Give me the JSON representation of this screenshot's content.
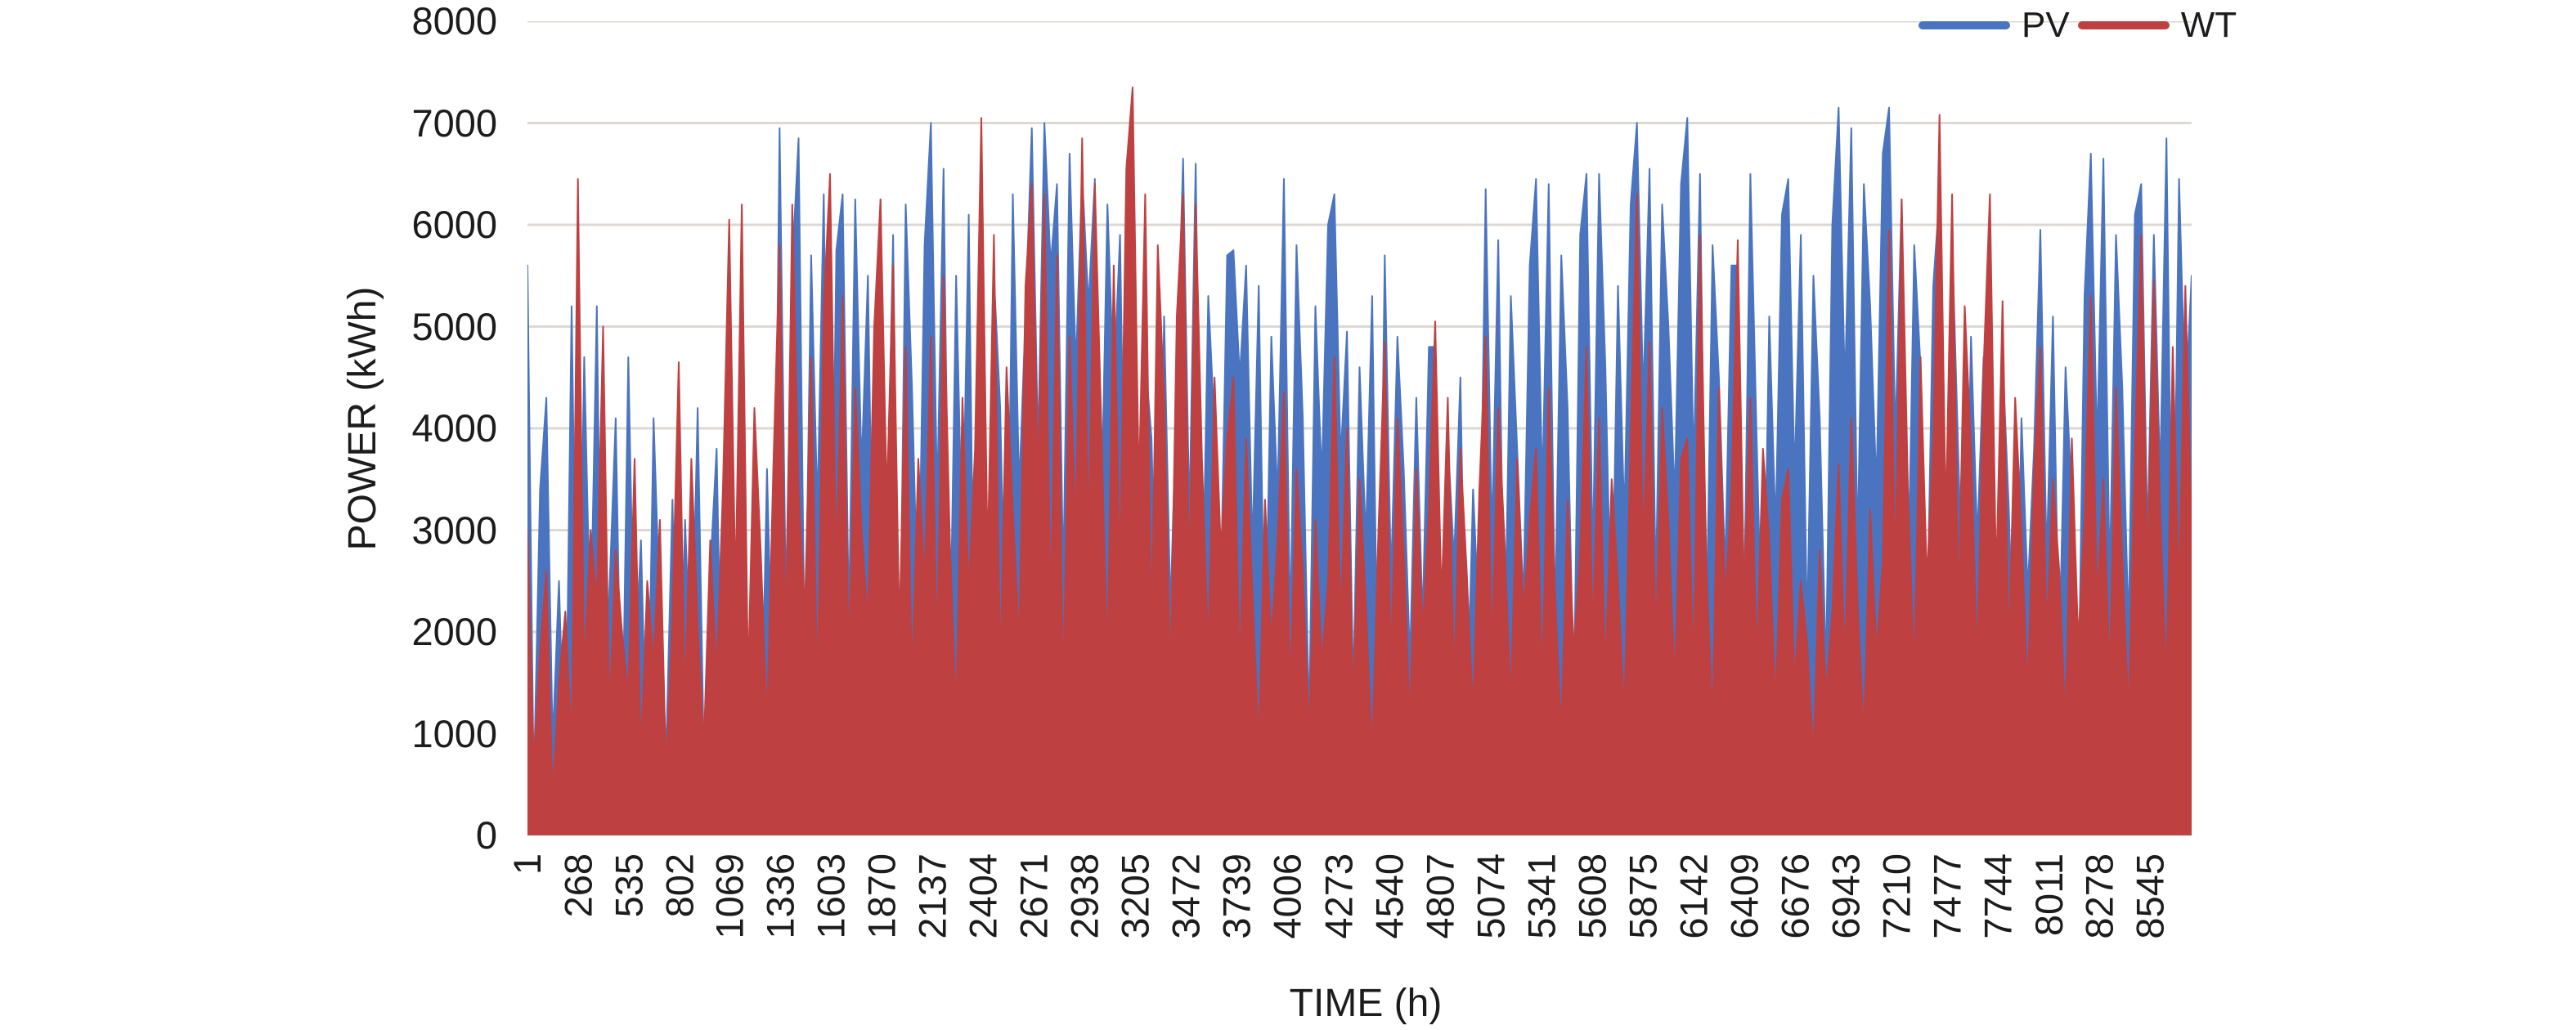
{
  "figure": {
    "background": "#ffffff",
    "text_color": "#1c1c1c"
  },
  "chart_data": {
    "type": "area",
    "title": "",
    "xlabel": "TIME (h)",
    "ylabel": "POWER (kWh)",
    "ylim": [
      0,
      8000
    ],
    "y_ticks": [
      0,
      1000,
      2000,
      3000,
      4000,
      5000,
      6000,
      7000,
      8000
    ],
    "x_start": 1,
    "x_end": 8760,
    "x_tick_step": 267,
    "x_tick_labels": [
      "1",
      "268",
      "535",
      "802",
      "1069",
      "1336",
      "1603",
      "1870",
      "2137",
      "2404",
      "2671",
      "2938",
      "3205",
      "3472",
      "3739",
      "4006",
      "4273",
      "4540",
      "4807",
      "5074",
      "5341",
      "5608",
      "5875",
      "6142",
      "6409",
      "6676",
      "6943",
      "7210",
      "7477",
      "7744",
      "8011",
      "8278",
      "8545"
    ],
    "grid": true,
    "gridline_color": "#dcd8d2",
    "legend_position": "top-right",
    "series": [
      {
        "name": "PV",
        "color": "#4a74bf",
        "values": [
          5600,
          450,
          3400,
          4300,
          900,
          2500,
          350,
          5200,
          700,
          4700,
          1900,
          5200,
          300,
          2400,
          4100,
          600,
          4700,
          1500,
          2900,
          400,
          4100,
          2200,
          800,
          3300,
          250,
          3100,
          1400,
          4200,
          700,
          2600,
          3800,
          500,
          3000,
          900,
          4200,
          1700,
          2500,
          450,
          3600,
          1100,
          6950,
          2300,
          5600,
          6850,
          1500,
          5700,
          3200,
          6300,
          900,
          5750,
          6300,
          2100,
          6250,
          3600,
          5500,
          1400,
          6250,
          2800,
          5900,
          1100,
          6200,
          4400,
          2000,
          5800,
          7000,
          3300,
          6550,
          1600,
          5500,
          2700,
          6100,
          900,
          6850,
          2200,
          5500,
          4200,
          1200,
          6300,
          3400,
          5100,
          6950,
          3800,
          7000,
          5600,
          6400,
          2500,
          6700,
          4600,
          6500,
          5200,
          6450,
          3000,
          6200,
          4400,
          5900,
          1800,
          5500,
          2600,
          4700,
          3900,
          1300,
          5100,
          2200,
          4400,
          6650,
          3100,
          6600,
          1900,
          5300,
          4000,
          2400,
          5700,
          5750,
          4500,
          5600,
          2800,
          5400,
          1500,
          4900,
          3300,
          6450,
          2000,
          5800,
          4100,
          1100,
          5200,
          3500,
          6000,
          6300,
          3700,
          4950,
          1400,
          4600,
          2900,
          5300,
          800,
          5700,
          2500,
          4900,
          3600,
          1700,
          4300,
          2100,
          4800,
          4800,
          1200,
          3900,
          2700,
          4500,
          900,
          3400,
          2000,
          6350,
          2900,
          5850,
          1600,
          5300,
          3800,
          2300,
          5600,
          6450,
          3400,
          6400,
          2100,
          5700,
          4200,
          1300,
          5900,
          6500,
          2700,
          6500,
          4600,
          1800,
          5400,
          3100,
          6200,
          7000,
          4300,
          6550,
          2400,
          6200,
          5000,
          3300,
          6400,
          7050,
          3600,
          6500,
          1900,
          5800,
          4500,
          2600,
          5600,
          5600,
          2200,
          6500,
          3900,
          1400,
          5100,
          3000,
          6100,
          6450,
          3500,
          5900,
          2000,
          5500,
          4100,
          1600,
          6000,
          7150,
          4400,
          6950,
          2800,
          6400,
          5200,
          3400,
          6700,
          7150,
          3900,
          6250,
          2300,
          5800,
          4600,
          1900,
          5400,
          6300,
          2600,
          5850,
          3700,
          1500,
          4900,
          2900,
          4700,
          4750,
          1800,
          4700,
          3200,
          900,
          4100,
          2400,
          3800,
          5950,
          2700,
          5100,
          1700,
          4600,
          3300,
          1100,
          5300,
          6700,
          3800,
          6650,
          2500,
          5900,
          4400,
          2000,
          6100,
          6400,
          2900,
          5900,
          3500,
          6850,
          1800,
          6450,
          4200,
          5500
        ]
      },
      {
        "name": "WT",
        "color": "#bf4040",
        "values": [
          3000,
          700,
          1800,
          2600,
          400,
          1500,
          2200,
          900,
          6450,
          1600,
          3000,
          2300,
          5000,
          1200,
          2800,
          2000,
          1400,
          3700,
          800,
          2500,
          1700,
          3100,
          600,
          2200,
          4650,
          1300,
          3700,
          2100,
          900,
          2900,
          1600,
          3400,
          6050,
          2400,
          6200,
          1500,
          4200,
          2800,
          1100,
          3600,
          5800,
          1900,
          6200,
          3400,
          2200,
          4700,
          1400,
          5200,
          6500,
          2600,
          5300,
          1700,
          4400,
          3000,
          2100,
          5000,
          6250,
          3300,
          5600,
          2000,
          4800,
          1500,
          3700,
          2500,
          4900,
          1800,
          5500,
          2900,
          1200,
          4300,
          2400,
          3800,
          7050,
          2700,
          5900,
          1600,
          4600,
          3200,
          1900,
          5400,
          6400,
          3500,
          6300,
          2200,
          5700,
          1400,
          4900,
          3000,
          6850,
          2900,
          6400,
          4100,
          1700,
          5600,
          2600,
          6550,
          7350,
          3400,
          6300,
          2000,
          5800,
          4300,
          1500,
          5100,
          6300,
          2500,
          6200,
          3700,
          1800,
          4500,
          2800,
          3900,
          4500,
          1600,
          3900,
          2400,
          900,
          3300,
          1900,
          2900,
          4350,
          1400,
          3600,
          2600,
          1000,
          3100,
          1700,
          2500,
          4700,
          2100,
          4000,
          1300,
          3500,
          2300,
          800,
          3000,
          4850,
          1700,
          4100,
          2800,
          1100,
          3600,
          2000,
          3200,
          5050,
          2300,
          4300,
          1500,
          3800,
          2600,
          1200,
          3400,
          4900,
          1800,
          4200,
          2900,
          1300,
          3700,
          2200,
          3100,
          3800,
          1500,
          4400,
          2400,
          1000,
          3300,
          1800,
          2800,
          4800,
          2000,
          4100,
          1600,
          3500,
          2500,
          1200,
          3900,
          6300,
          2800,
          4850,
          1900,
          4200,
          3100,
          1500,
          3700,
          3900,
          1600,
          5900,
          2700,
          1100,
          4400,
          2300,
          3400,
          5850,
          2400,
          4300,
          1700,
          3800,
          2900,
          1300,
          3300,
          3600,
          1500,
          2500,
          1900,
          800,
          2800,
          1400,
          2200,
          3650,
          1700,
          4100,
          2300,
          1000,
          3200,
          1800,
          2700,
          5950,
          2600,
          6250,
          3400,
          1600,
          4700,
          2500,
          3900,
          7080,
          3100,
          6300,
          2200,
          5200,
          3800,
          1700,
          4600,
          6300,
          2500,
          5250,
          1800,
          4300,
          3000,
          1400,
          3600,
          4800,
          2000,
          3500,
          2600,
          1100,
          3900,
          1900,
          3100,
          5300,
          2300,
          3500,
          1600,
          4400,
          2700,
          1200,
          3800,
          5900,
          2600,
          5450,
          3200,
          1500,
          4800,
          2400,
          5400,
          3000
        ]
      }
    ]
  }
}
